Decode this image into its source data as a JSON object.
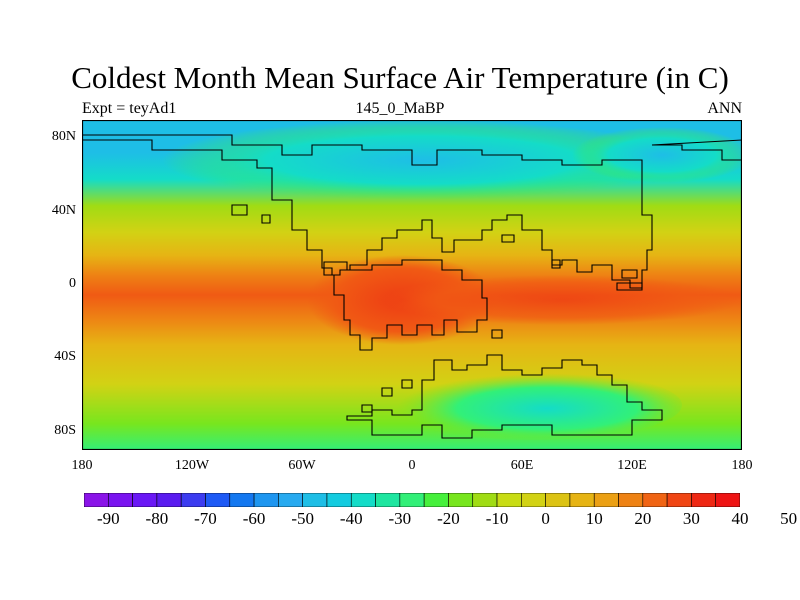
{
  "title": "Coldest Month Mean Surface Air Temperature (in C)",
  "subtitle_left": "Expt = teyAd1",
  "subtitle_center": "145_0_MaBP",
  "subtitle_right": "ANN",
  "lat_ticks": [
    {
      "label": "80N",
      "value": 80
    },
    {
      "label": "40N",
      "value": 40
    },
    {
      "label": "0",
      "value": 0
    },
    {
      "label": "40S",
      "value": -40
    },
    {
      "label": "80S",
      "value": -80
    }
  ],
  "lon_ticks": [
    {
      "label": "180",
      "value": -180
    },
    {
      "label": "120W",
      "value": -120
    },
    {
      "label": "60W",
      "value": -60
    },
    {
      "label": "0",
      "value": 0
    },
    {
      "label": "60E",
      "value": 60
    },
    {
      "label": "120E",
      "value": 120
    },
    {
      "label": "180",
      "value": 180
    }
  ],
  "colorbar": {
    "colors": [
      "#8a14e8",
      "#7a14f0",
      "#6a18f5",
      "#5a1cf0",
      "#3c3cf0",
      "#1e5af5",
      "#1478f0",
      "#1e96f0",
      "#28aaf0",
      "#1ebee6",
      "#14cce0",
      "#14dcc8",
      "#1ee6a0",
      "#32f078",
      "#46f03c",
      "#78e61e",
      "#a0dc14",
      "#c8dc14",
      "#d2d214",
      "#dcc314",
      "#e6b414",
      "#eba014",
      "#ee8214",
      "#f06414",
      "#f04614",
      "#ee2814",
      "#ee1414"
    ],
    "labels": [
      {
        "label": "-90",
        "value": -90
      },
      {
        "label": "-80",
        "value": -80
      },
      {
        "label": "-70",
        "value": -70
      },
      {
        "label": "-60",
        "value": -60
      },
      {
        "label": "-50",
        "value": -50
      },
      {
        "label": "-40",
        "value": -40
      },
      {
        "label": "-30",
        "value": -30
      },
      {
        "label": "-20",
        "value": -20
      },
      {
        "label": "-10",
        "value": -10
      },
      {
        "label": "0",
        "value": 0
      },
      {
        "label": "10",
        "value": 10
      },
      {
        "label": "20",
        "value": 20
      },
      {
        "label": "30",
        "value": 30
      },
      {
        "label": "40",
        "value": 40
      },
      {
        "label": "50",
        "value": 50
      }
    ]
  },
  "field_colors": {
    "arctic": "#1ebee6",
    "subarctic": "#14dcc8",
    "midhigh": "#46f03c",
    "midlat": "#a0dc14",
    "subtrop": "#d2d214",
    "warm": "#e6b414",
    "tropic": "#ee8214",
    "hot": "#f05a14",
    "hottest": "#ee3c14",
    "south_cold": "#14dcc8",
    "south_mid": "#32f078",
    "south_green": "#78e61e"
  }
}
